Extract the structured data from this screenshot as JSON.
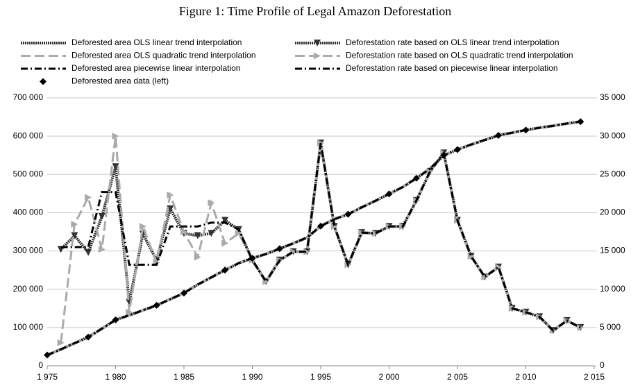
{
  "chart_data": {
    "type": "line",
    "title": "Figure 1: Time Profile of Legal Amazon Deforestation",
    "xlim": [
      1975,
      2015
    ],
    "xticks": [
      {
        "value": 1975,
        "label": "1 975"
      },
      {
        "value": 1980,
        "label": "1 980"
      },
      {
        "value": 1985,
        "label": "1 985"
      },
      {
        "value": 1990,
        "label": "1 990"
      },
      {
        "value": 1995,
        "label": "1 995"
      },
      {
        "value": 2000,
        "label": "2 000"
      },
      {
        "value": 2005,
        "label": "2 005"
      },
      {
        "value": 2010,
        "label": "2 010"
      },
      {
        "value": 2015,
        "label": "2 015"
      }
    ],
    "ylim": [
      0,
      700000
    ],
    "yticks": [
      0,
      {
        "value": 100000,
        "label": "100 000"
      },
      {
        "value": 200000,
        "label": "200 000"
      },
      {
        "value": 300000,
        "label": "300 000"
      },
      {
        "value": 400000,
        "label": "400 000"
      },
      {
        "value": 500000,
        "label": "500 000"
      },
      {
        "value": 600000,
        "label": "600 000"
      },
      {
        "value": 700000,
        "label": "700 000"
      }
    ],
    "y2lim": [
      0,
      35000
    ],
    "y2ticks": [
      0,
      {
        "value": 5000,
        "label": "5 000"
      },
      {
        "value": 10000,
        "label": "10 000"
      },
      {
        "value": 15000,
        "label": "15 000"
      },
      {
        "value": 20000,
        "label": "20 000"
      },
      {
        "value": 25000,
        "label": "25 000"
      },
      {
        "value": 30000,
        "label": "30 000"
      },
      {
        "value": 35000,
        "label": "35 000"
      }
    ],
    "grid": true,
    "series": [
      {
        "name": "Deforested area OLS linear trend interpolation",
        "color": "#333333",
        "style": "dotted",
        "marker": "none",
        "axis": "y",
        "x": [
          1975,
          1976,
          1977,
          1978,
          1979,
          1980,
          1981,
          1982,
          1983,
          1984,
          1985,
          1986,
          1987,
          1988,
          1989,
          1990,
          1991,
          1992,
          1993,
          1994,
          1995,
          1996,
          1997,
          1998,
          1999,
          2000,
          2001,
          2002,
          2003,
          2004,
          2005,
          2006,
          2007,
          2008,
          2009,
          2010,
          2011,
          2012,
          2013,
          2014
        ],
        "values": [
          28000,
          43000,
          59000,
          75000,
          97000,
          120000,
          132000,
          145000,
          158000,
          174000,
          190000,
          212000,
          231000,
          250000,
          268000,
          281000,
          292000,
          306000,
          320000,
          335000,
          365000,
          383000,
          396000,
          414000,
          431000,
          449000,
          467000,
          490000,
          515000,
          550000,
          565000,
          578000,
          590000,
          602000,
          609000,
          616000,
          622000,
          627000,
          633000,
          638000
        ]
      },
      {
        "name": "Deforestation rate based on OLS linear trend interpolation",
        "color": "#333333",
        "style": "dotted",
        "marker": "triangle-down",
        "axis": "y2",
        "x": [
          1976,
          1977,
          1978,
          1979,
          1980,
          1981,
          1982,
          1983,
          1984,
          1985,
          1986,
          1987,
          1988,
          1989,
          1990,
          1991,
          1992,
          1993,
          1994,
          1995,
          1996,
          1997,
          1998,
          1999,
          2000,
          2001,
          2002,
          2003,
          2004,
          2005,
          2006,
          2007,
          2008,
          2009,
          2010,
          2011,
          2012,
          2013,
          2014
        ],
        "values": [
          15200,
          17000,
          14800,
          19500,
          26000,
          8300,
          17200,
          13800,
          20500,
          17300,
          17000,
          17300,
          19000,
          17800,
          13800,
          11000,
          13800,
          14900,
          14900,
          29100,
          18200,
          13200,
          17400,
          17300,
          18200,
          18200,
          21600,
          25400,
          27800,
          19000,
          14300,
          11600,
          12900,
          7500,
          7000,
          6400,
          4600,
          5900,
          5000
        ]
      },
      {
        "name": "Deforested area OLS quadratic trend interpolation",
        "color": "#aaaaaa",
        "style": "dashed",
        "marker": "none",
        "axis": "y",
        "x": [
          1975,
          1976,
          1977,
          1978,
          1979,
          1980,
          1981,
          1982,
          1983,
          1984,
          1985,
          1986,
          1987,
          1988,
          1989,
          1990,
          1991,
          1992,
          1993,
          1994,
          1995,
          1996,
          1997,
          1998,
          1999,
          2000,
          2001,
          2002,
          2003,
          2004,
          2005,
          2006,
          2007,
          2008,
          2009,
          2010,
          2011,
          2012,
          2013,
          2014
        ],
        "values": [
          28000,
          43000,
          59000,
          75000,
          97000,
          120000,
          132000,
          145000,
          158000,
          174000,
          190000,
          212000,
          231000,
          250000,
          268000,
          281000,
          292000,
          306000,
          320000,
          335000,
          365000,
          383000,
          396000,
          414000,
          431000,
          449000,
          467000,
          490000,
          515000,
          550000,
          565000,
          578000,
          590000,
          602000,
          609000,
          616000,
          622000,
          627000,
          633000,
          638000
        ]
      },
      {
        "name": "Deforestation rate based on OLS quadratic trend interpolation",
        "color": "#aaaaaa",
        "style": "dashed",
        "marker": "triangle-right",
        "axis": "y2",
        "x": [
          1976,
          1977,
          1978,
          1979,
          1980,
          1981,
          1982,
          1983,
          1984,
          1985,
          1986,
          1987,
          1988,
          1989,
          1990,
          1991,
          1992,
          1993,
          1994,
          1995,
          1996,
          1997,
          1998,
          1999,
          2000,
          2001,
          2002,
          2003,
          2004,
          2005,
          2006,
          2007,
          2008,
          2009,
          2010,
          2011,
          2012,
          2013,
          2014
        ],
        "values": [
          3000,
          18500,
          22000,
          15200,
          30000,
          7000,
          18200,
          13500,
          22300,
          17500,
          14200,
          21300,
          16000,
          17300,
          13800,
          11000,
          13800,
          14900,
          14900,
          29100,
          18200,
          13200,
          17400,
          17300,
          18200,
          18200,
          21600,
          25400,
          27800,
          19000,
          14300,
          11600,
          12900,
          7500,
          7000,
          6400,
          4600,
          5900,
          5000
        ]
      },
      {
        "name": "Deforested area piecewise linear interpolation",
        "color": "#000000",
        "style": "dashdot",
        "marker": "none",
        "axis": "y",
        "x": [
          1975,
          1976,
          1977,
          1978,
          1979,
          1980,
          1981,
          1982,
          1983,
          1984,
          1985,
          1986,
          1987,
          1988,
          1989,
          1990,
          1991,
          1992,
          1993,
          1994,
          1995,
          1996,
          1997,
          1998,
          1999,
          2000,
          2001,
          2002,
          2003,
          2004,
          2005,
          2006,
          2007,
          2008,
          2009,
          2010,
          2011,
          2012,
          2013,
          2014
        ],
        "values": [
          28000,
          43000,
          59000,
          75000,
          97000,
          120000,
          132000,
          145000,
          158000,
          174000,
          190000,
          212000,
          231000,
          250000,
          268000,
          281000,
          292000,
          306000,
          320000,
          335000,
          365000,
          383000,
          396000,
          414000,
          431000,
          449000,
          467000,
          490000,
          515000,
          550000,
          565000,
          578000,
          590000,
          602000,
          609000,
          616000,
          622000,
          627000,
          633000,
          638000
        ]
      },
      {
        "name": "Deforestation rate based on piecewise linear interpolation",
        "color": "#000000",
        "style": "dashdot",
        "marker": "none",
        "axis": "y2",
        "x": [
          1976,
          1977,
          1978,
          1979,
          1980,
          1981,
          1982,
          1983,
          1984,
          1985,
          1986,
          1987,
          1988,
          1989,
          1990,
          1991,
          1992,
          1993,
          1994,
          1995,
          1996,
          1997,
          1998,
          1999,
          2000,
          2001,
          2002,
          2003,
          2004,
          2005,
          2006,
          2007,
          2008,
          2009,
          2010,
          2011,
          2012,
          2013,
          2014
        ],
        "values": [
          15500,
          15500,
          15500,
          22700,
          22700,
          13200,
          13200,
          13200,
          18200,
          18200,
          18200,
          18700,
          18700,
          17800,
          13800,
          11000,
          13800,
          14900,
          14900,
          29100,
          18200,
          13200,
          17400,
          17300,
          18200,
          18200,
          21600,
          25400,
          27800,
          19000,
          14300,
          11600,
          12900,
          7500,
          7000,
          6400,
          4600,
          5900,
          5000
        ]
      },
      {
        "name": "Deforested area data (left)",
        "color": "#000000",
        "style": "none",
        "marker": "diamond",
        "axis": "y",
        "x": [
          1975,
          1978,
          1980,
          1983,
          1985,
          1988,
          1990,
          1992,
          1995,
          1997,
          2000,
          2002,
          2004,
          2005,
          2008,
          2010,
          2014
        ],
        "values": [
          28000,
          75000,
          120000,
          158000,
          190000,
          250000,
          281000,
          306000,
          365000,
          396000,
          449000,
          490000,
          550000,
          565000,
          602000,
          616000,
          638000
        ]
      }
    ]
  }
}
